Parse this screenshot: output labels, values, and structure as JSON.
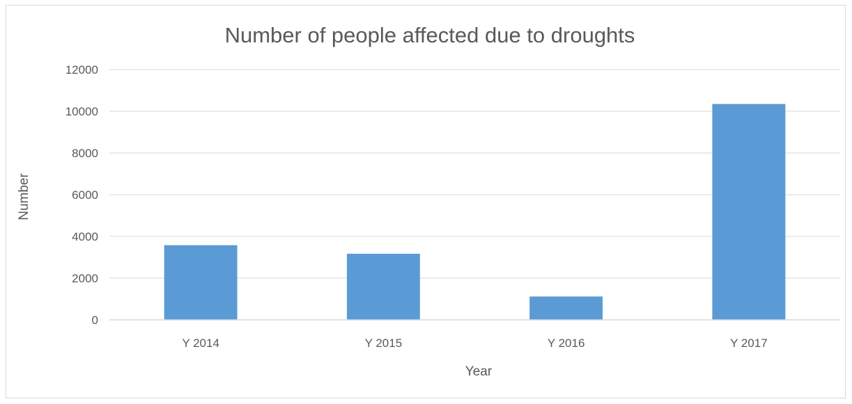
{
  "chart_data": {
    "type": "bar",
    "title": "Number of people affected due to droughts",
    "xlabel": "Year",
    "ylabel": "Number",
    "categories": [
      "Y 2014",
      "Y 2015",
      "Y 2016",
      "Y 2017"
    ],
    "values": [
      3580,
      3170,
      1120,
      10350
    ],
    "ylim": [
      0,
      12000
    ],
    "yticks": [
      "0",
      "2000",
      "4000",
      "6000",
      "8000",
      "10000",
      "12000"
    ],
    "grid": true,
    "legend": "none",
    "bar_color": "#5b9bd5"
  }
}
